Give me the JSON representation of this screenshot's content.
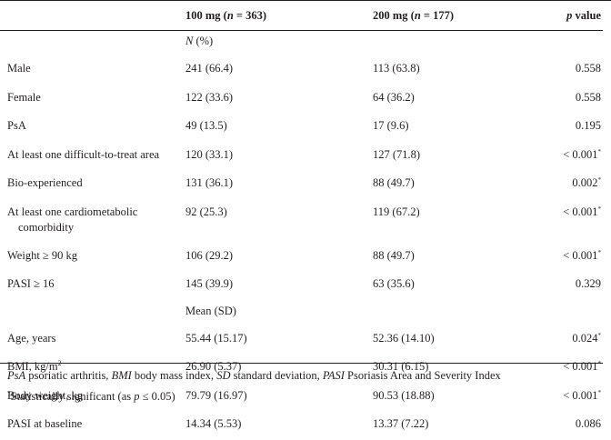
{
  "columns": {
    "dose_100": "100 mg (",
    "dose_100_n": "n",
    "dose_100_tail": " = 363)",
    "dose_200": "200 mg (",
    "dose_200_n": "n",
    "dose_200_tail": " = 177)",
    "p_italic": "p",
    "p_tail": " value"
  },
  "section_n": {
    "label_italic": "N",
    "label_tail": " (%)"
  },
  "rows_n": [
    {
      "label": "Male",
      "v100": "241 (66.4)",
      "v200": "113 (63.8)",
      "p": "0.558",
      "sig": ""
    },
    {
      "label": "Female",
      "v100": "122 (33.6)",
      "v200": "64 (36.2)",
      "p": "0.558",
      "sig": ""
    },
    {
      "label": "PsA",
      "v100": "49 (13.5)",
      "v200": "17 (9.6)",
      "p": "0.195",
      "sig": ""
    },
    {
      "label": "At least one difficult-to-treat area",
      "v100": "120 (33.1)",
      "v200": "127 (71.8)",
      "p": "< 0.001",
      "sig": "*"
    },
    {
      "label": "Bio-experienced",
      "v100": "131 (36.1)",
      "v200": "88 (49.7)",
      "p": "0.002",
      "sig": "*"
    },
    {
      "label": "At least one cardiometabolic",
      "label2": "comorbidity",
      "v100": "92 (25.3)",
      "v200": "119 (67.2)",
      "p": "< 0.001",
      "sig": "*"
    },
    {
      "label": "Weight ≥ 90 kg",
      "v100": "106 (29.2)",
      "v200": "88 (49.7)",
      "p": "< 0.001",
      "sig": "*"
    },
    {
      "label": "PASI ≥ 16",
      "v100": "145 (39.9)",
      "v200": "63 (35.6)",
      "p": "0.329",
      "sig": ""
    }
  ],
  "section_mean": {
    "label": "Mean (SD)"
  },
  "rows_mean": [
    {
      "label": "Age, years",
      "v100": "55.44 (15.17)",
      "v200": "52.36 (14.10)",
      "p": "0.024",
      "sig": "*"
    },
    {
      "label": "BMI, kg/m",
      "sup": "2",
      "v100": "26.90 (5.37)",
      "v200": "30.31 (6.15)",
      "p": "< 0.001",
      "sig": "*"
    },
    {
      "label": "Body weight, kg",
      "v100": "79.79 (16.97)",
      "v200": "90.53 (18.88)",
      "p": "< 0.001",
      "sig": "*"
    },
    {
      "label": "PASI at baseline",
      "v100": "14.34 (5.53)",
      "v200": "13.37 (7.22)",
      "p": "0.086",
      "sig": ""
    }
  ],
  "footnote": {
    "abbr": [
      {
        "term": "PsA",
        "def": " psoriatic arthritis, "
      },
      {
        "term": "BMI",
        "def": " body mass index, "
      },
      {
        "term": "SD",
        "def": " standard deviation, "
      },
      {
        "term": "PASI",
        "def": " Psoriasis Area and Severity Index"
      }
    ],
    "sig_mark": "*",
    "sig_text": "Statistically significant (as ",
    "sig_p": "p",
    "sig_tail": " ≤ 0.05)"
  }
}
